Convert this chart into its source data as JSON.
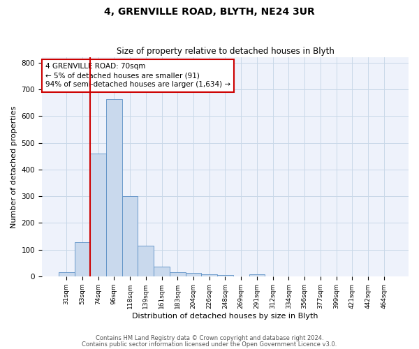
{
  "title1": "4, GRENVILLE ROAD, BLYTH, NE24 3UR",
  "title2": "Size of property relative to detached houses in Blyth",
  "xlabel": "Distribution of detached houses by size in Blyth",
  "ylabel": "Number of detached properties",
  "footer1": "Contains HM Land Registry data © Crown copyright and database right 2024.",
  "footer2": "Contains public sector information licensed under the Open Government Licence v3.0.",
  "annotation_line1": "4 GRENVILLE ROAD: 70sqm",
  "annotation_line2": "← 5% of detached houses are smaller (91)",
  "annotation_line3": "94% of semi-detached houses are larger (1,634) →",
  "bar_color": "#c9d9ed",
  "bar_edge_color": "#5b8fc5",
  "redline_color": "#cc0000",
  "grid_color": "#c8d8e8",
  "bg_color": "#eef2fb",
  "categories": [
    "31sqm",
    "53sqm",
    "74sqm",
    "96sqm",
    "118sqm",
    "139sqm",
    "161sqm",
    "183sqm",
    "204sqm",
    "226sqm",
    "248sqm",
    "269sqm",
    "291sqm",
    "312sqm",
    "334sqm",
    "356sqm",
    "377sqm",
    "399sqm",
    "421sqm",
    "442sqm",
    "464sqm"
  ],
  "values": [
    15,
    128,
    460,
    663,
    300,
    115,
    35,
    14,
    12,
    7,
    5,
    0,
    8,
    0,
    0,
    0,
    0,
    0,
    0,
    0,
    0
  ],
  "ylim": [
    0,
    820
  ],
  "yticks": [
    0,
    100,
    200,
    300,
    400,
    500,
    600,
    700,
    800
  ],
  "annotation_box_color": "white",
  "annotation_box_edge": "#cc0000",
  "red_line_x": 1.5
}
